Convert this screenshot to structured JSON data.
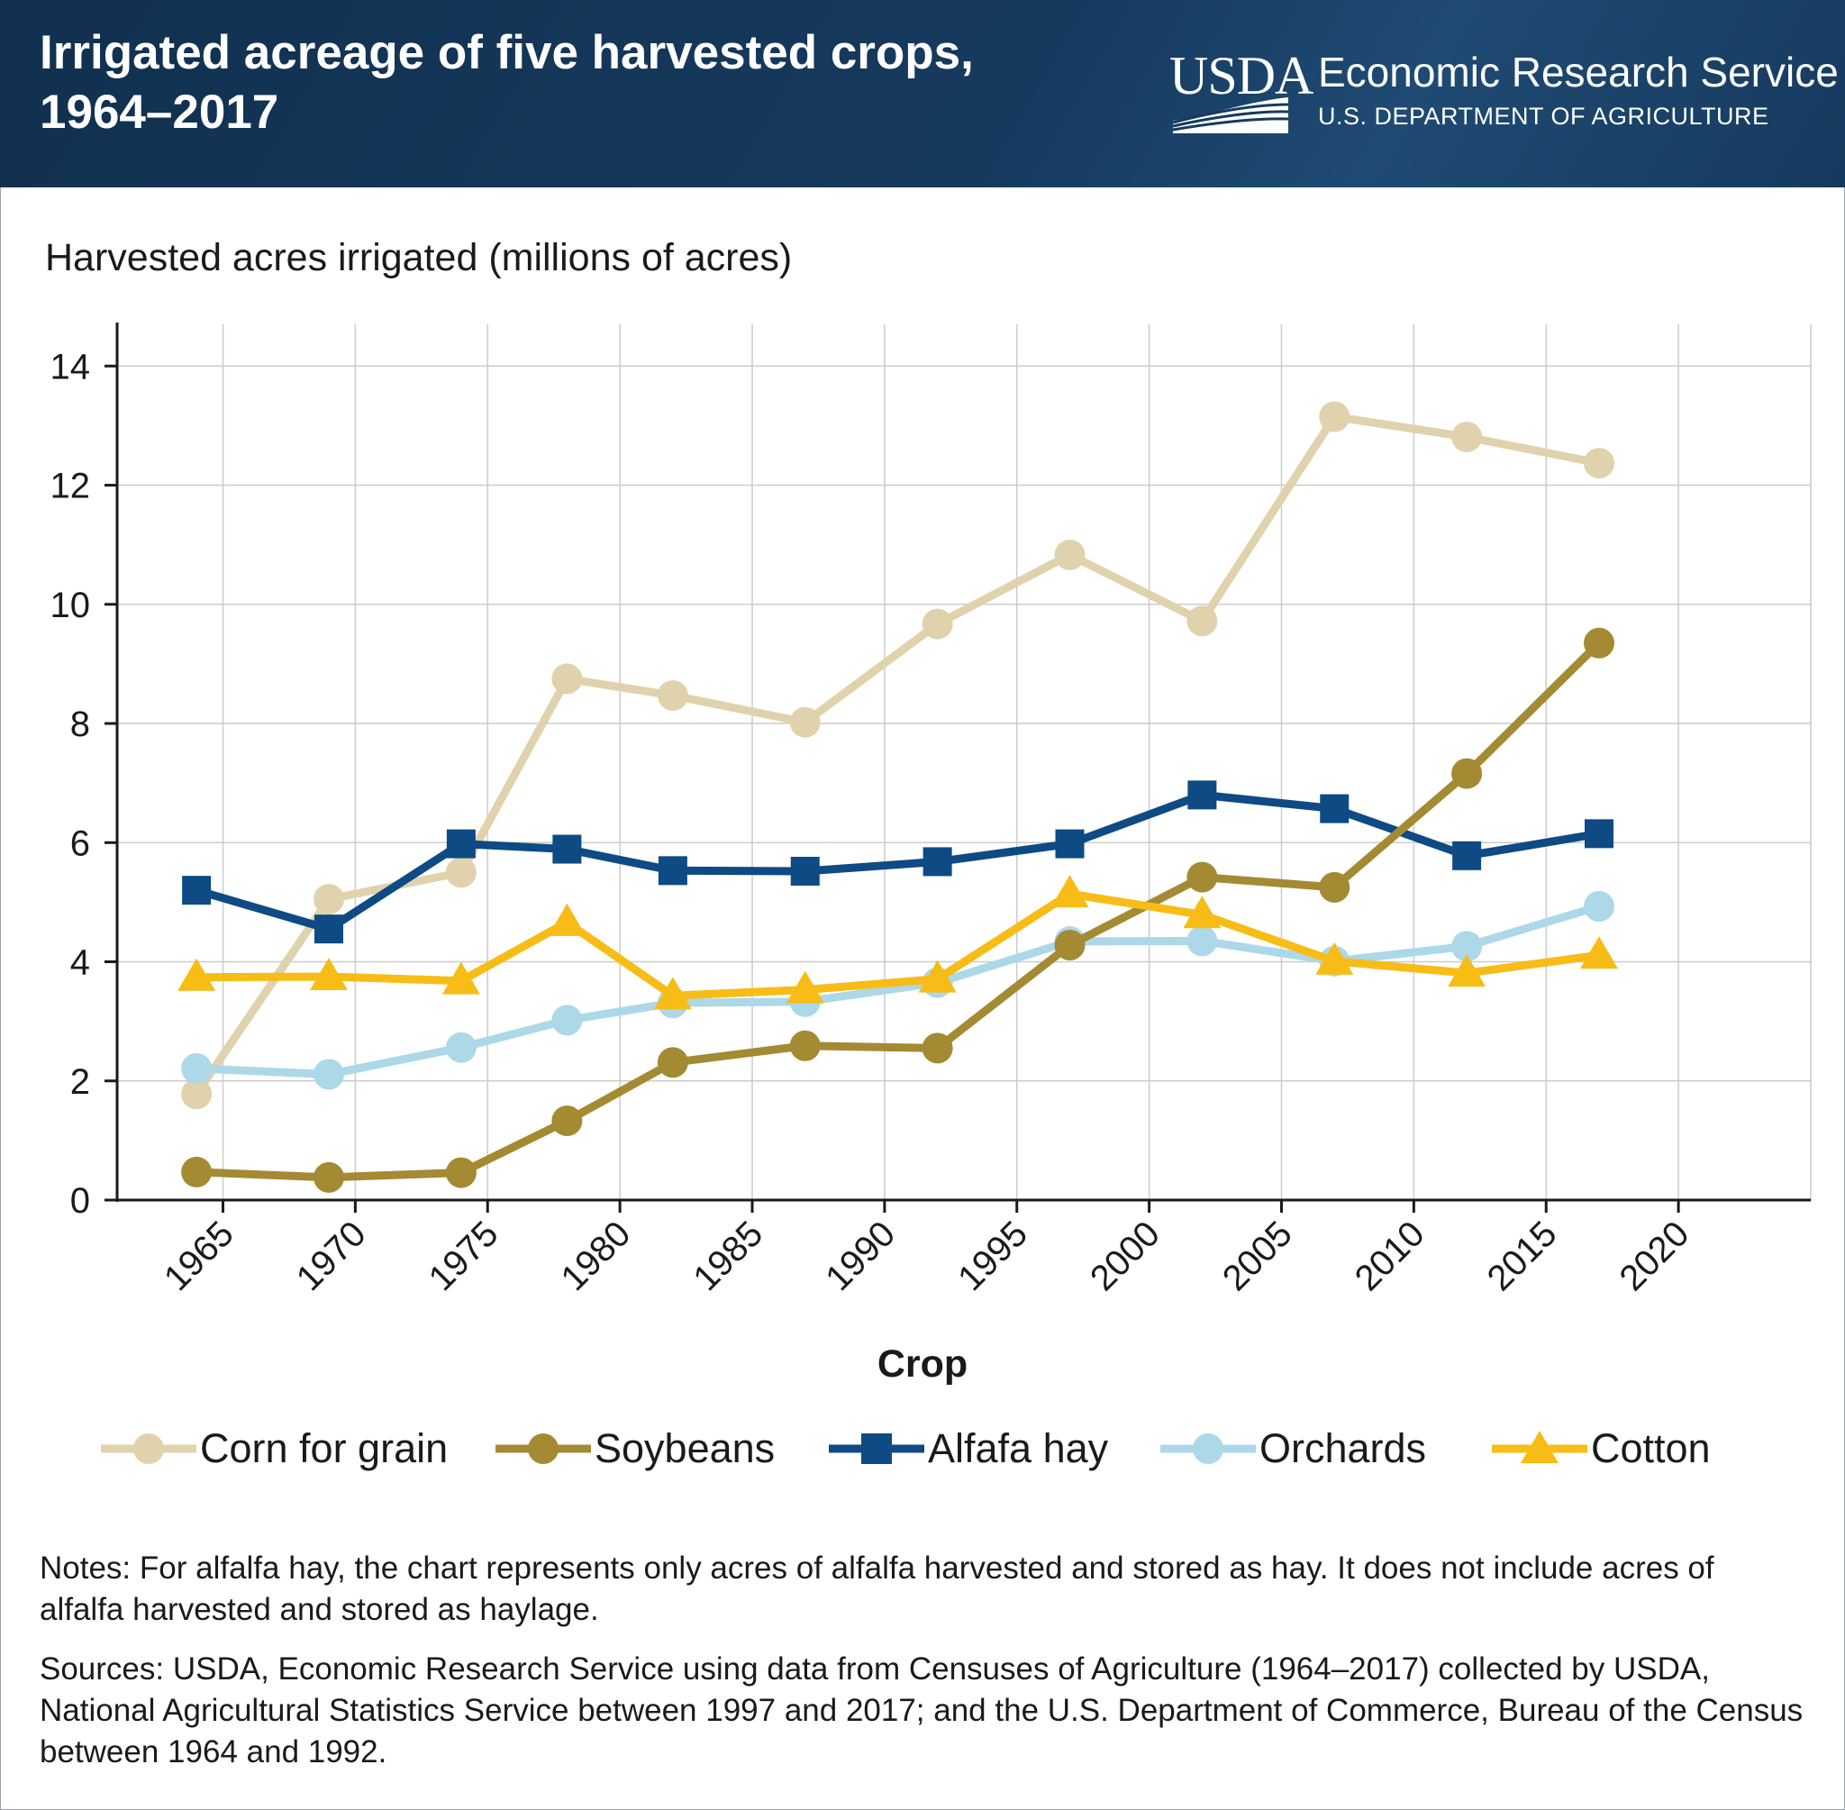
{
  "header": {
    "title_line1": "Irrigated acreage of five harvested crops,",
    "title_line2": "1964–2017",
    "logo_text": "USDA",
    "agency_name": "Economic Research Service",
    "department": "U.S. DEPARTMENT OF AGRICULTURE"
  },
  "colors": {
    "header_bg": "#163a5e",
    "corn": "#e0d2ac",
    "soybeans": "#a38a33",
    "alfalfa": "#0e4a84",
    "orchards": "#acd8e8",
    "cotton": "#f7bc16",
    "grid": "#cccccc",
    "axis": "#1a1a1a"
  },
  "chart_data": {
    "type": "line",
    "ylabel": "Harvested acres irrigated (millions of acres)",
    "xlabel": "Crop",
    "xlim": [
      1961,
      2025
    ],
    "ylim": [
      0,
      14.7
    ],
    "x_ticks": [
      1965,
      1970,
      1975,
      1980,
      1985,
      1990,
      1995,
      2000,
      2005,
      2010,
      2015,
      2020
    ],
    "y_ticks": [
      0,
      2,
      4,
      6,
      8,
      10,
      12,
      14
    ],
    "grid": true,
    "legend_position": "bottom",
    "x": [
      1964,
      1969,
      1974,
      1978,
      1982,
      1987,
      1992,
      1997,
      2002,
      2007,
      2012,
      2017
    ],
    "series": [
      {
        "name": "Corn for grain",
        "key": "corn",
        "marker": "circle",
        "values": [
          1.78,
          5.05,
          5.5,
          8.75,
          8.47,
          8.02,
          9.67,
          10.83,
          9.72,
          13.15,
          12.81,
          12.37
        ]
      },
      {
        "name": "Soybeans",
        "key": "soybeans",
        "marker": "circle",
        "values": [
          0.47,
          0.38,
          0.46,
          1.33,
          2.31,
          2.59,
          2.55,
          4.28,
          5.42,
          5.25,
          7.16,
          9.35
        ]
      },
      {
        "name": "Alfafa hay",
        "key": "alfalfa",
        "marker": "square",
        "values": [
          5.2,
          4.55,
          5.98,
          5.89,
          5.53,
          5.52,
          5.68,
          5.98,
          6.8,
          6.57,
          5.78,
          6.15
        ]
      },
      {
        "name": "Orchards",
        "key": "orchards",
        "marker": "circle",
        "values": [
          2.21,
          2.11,
          2.56,
          3.02,
          3.31,
          3.33,
          3.65,
          4.34,
          4.35,
          4.01,
          4.26,
          4.93
        ]
      },
      {
        "name": "Cotton",
        "key": "cotton",
        "marker": "triangle",
        "values": [
          3.74,
          3.75,
          3.68,
          4.66,
          3.43,
          3.53,
          3.71,
          5.14,
          4.79,
          4.01,
          3.81,
          4.11
        ]
      }
    ]
  },
  "notes": "Notes: For alfalfa hay, the chart represents only acres of alfalfa harvested and stored as hay. It does not include acres of alfalfa harvested and stored as haylage.",
  "sources": "Sources: USDA, Economic Research Service using data from Censuses of Agriculture (1964–2017) collected by USDA, National Agricultural Statistics Service between 1997 and 2017; and the U.S. Department of Commerce, Bureau of the Census between 1964 and 1992."
}
